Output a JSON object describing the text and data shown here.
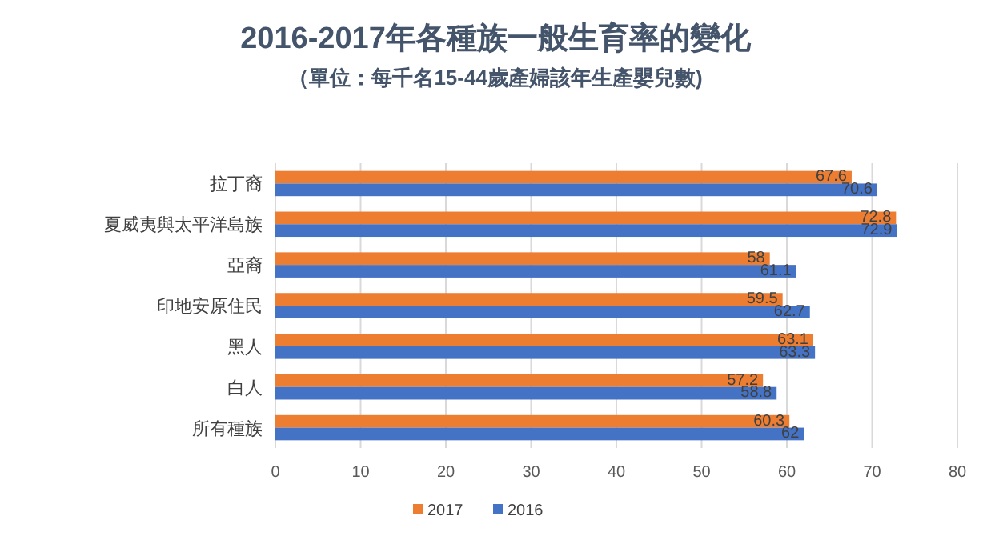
{
  "chart_data": {
    "type": "bar",
    "orientation": "horizontal",
    "title": "2016-2017年各種族一般生育率的變化",
    "subtitle": "（單位：每千名15-44歲產婦該年生產嬰兒數)",
    "categories": [
      "拉丁裔",
      "夏威夷與太平洋島族",
      "亞裔",
      "印地安原住民",
      "黑人",
      "白人",
      "所有種族"
    ],
    "series": [
      {
        "name": "2017",
        "color": "#ed7d31",
        "values": [
          67.6,
          72.8,
          58,
          59.5,
          63.1,
          57.2,
          60.3
        ]
      },
      {
        "name": "2016",
        "color": "#4472c4",
        "values": [
          70.6,
          72.9,
          61.1,
          62.7,
          63.3,
          58.8,
          62
        ]
      }
    ],
    "xlim": [
      0,
      80
    ],
    "xticks": [
      0,
      10,
      20,
      30,
      40,
      50,
      60,
      70,
      80
    ],
    "grid": "x",
    "legend": "bottom",
    "data_labels": true
  }
}
